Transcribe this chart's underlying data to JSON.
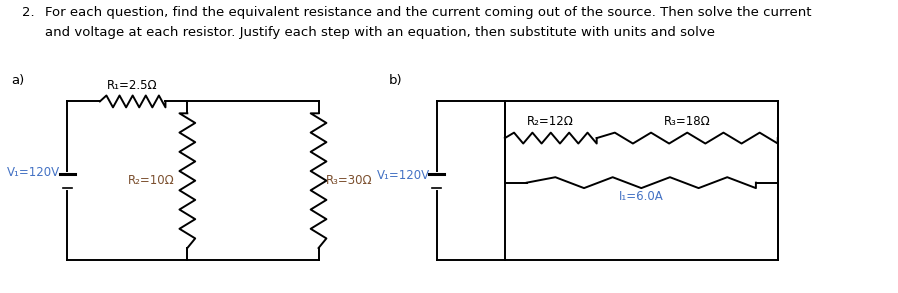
{
  "title_number": "2.",
  "title_text": "For each question, find the equivalent resistance and the current coming out of the source. Then solve the current",
  "title_text2": "and voltage at each resistor. Justify each step with an equation, then substitute with units and solve",
  "label_a": "a)",
  "label_b": "b)",
  "circuit_a": {
    "R1_label": "R₁=2.5Ω",
    "R2_label": "R₂=10Ω",
    "R3_label": "R₃=30Ω",
    "V1_label": "V₁=120V"
  },
  "circuit_b": {
    "R2_label": "R₂=12Ω",
    "R3_label": "R₃=18Ω",
    "V1_label": "V₁=120V",
    "I1_label": "I₁=6.0A"
  },
  "text_color": "#000000",
  "label_color_blue": "#4472C4",
  "label_color_brown": "#7B4F2E",
  "line_color": "#000000",
  "bg_color": "#ffffff",
  "font_size": 8.5,
  "title_font_size": 9.5
}
